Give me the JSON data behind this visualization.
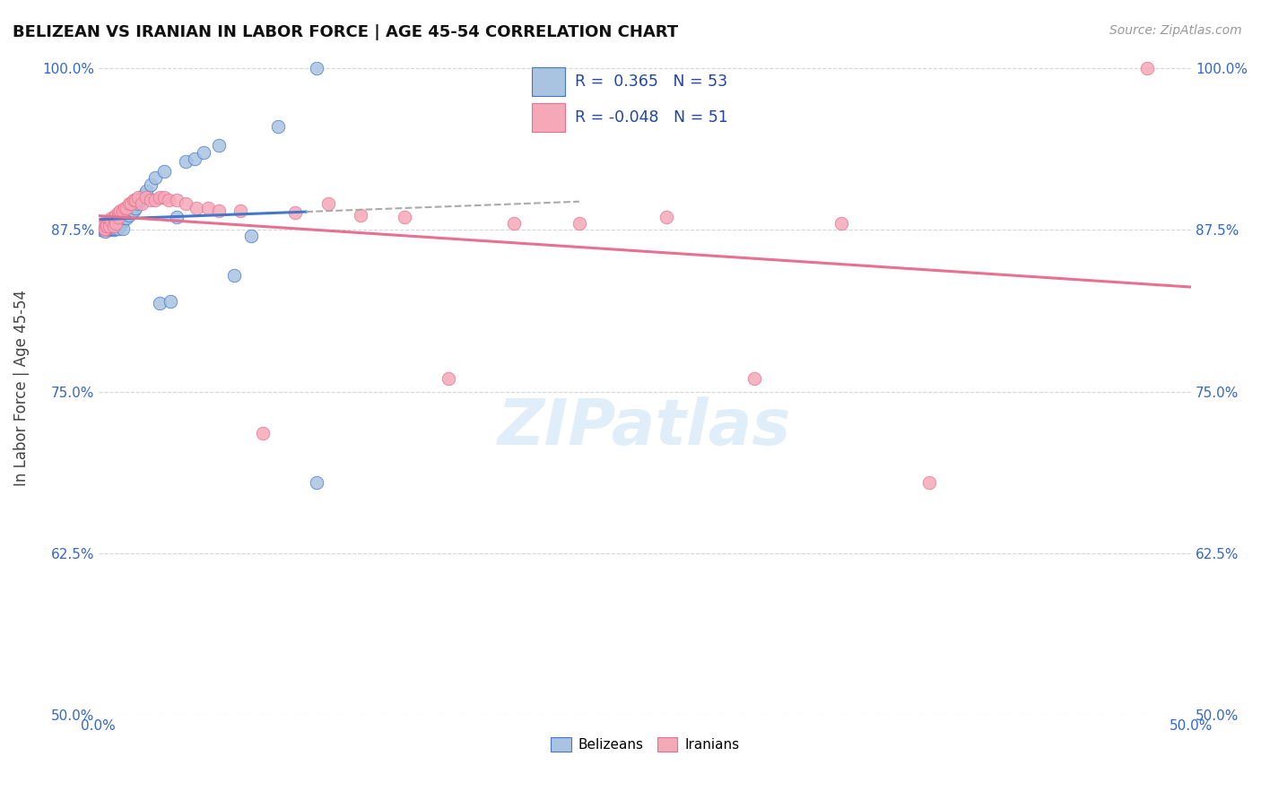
{
  "title": "BELIZEAN VS IRANIAN IN LABOR FORCE | AGE 45-54 CORRELATION CHART",
  "source": "Source: ZipAtlas.com",
  "ylabel": "In Labor Force | Age 45-54",
  "xmin": 0.0,
  "xmax": 0.5,
  "ymin": 0.5,
  "ymax": 1.005,
  "ytick_values": [
    0.5,
    0.625,
    0.75,
    0.875,
    1.0
  ],
  "ytick_labels": [
    "50.0%",
    "62.5%",
    "75.0%",
    "87.5%",
    "100.0%"
  ],
  "legend_r_blue": "0.365",
  "legend_n_blue": "53",
  "legend_r_pink": "-0.048",
  "legend_n_pink": "51",
  "blue_fill": "#a8c4e0",
  "blue_edge": "#4477cc",
  "pink_fill": "#f4a8b8",
  "pink_edge": "#e87090",
  "line_blue_color": "#4477cc",
  "line_pink_color": "#e87090",
  "dash_color": "#aaaaaa",
  "watermark_color": "#cce4f5",
  "belizean_x": [
    0.0015,
    0.0018,
    0.002,
    0.002,
    0.003,
    0.003,
    0.004,
    0.004,
    0.005,
    0.005,
    0.005,
    0.006,
    0.006,
    0.007,
    0.007,
    0.007,
    0.008,
    0.008,
    0.008,
    0.009,
    0.009,
    0.01,
    0.01,
    0.01,
    0.011,
    0.011,
    0.012,
    0.013,
    0.014,
    0.015,
    0.015,
    0.016,
    0.017,
    0.018,
    0.019,
    0.02,
    0.021,
    0.022,
    0.024,
    0.026,
    0.028,
    0.03,
    0.033,
    0.036,
    0.04,
    0.044,
    0.048,
    0.055,
    0.062,
    0.07,
    0.082,
    0.1,
    0.1
  ],
  "belizean_y": [
    0.875,
    0.875,
    0.878,
    0.876,
    0.878,
    0.874,
    0.876,
    0.878,
    0.875,
    0.878,
    0.88,
    0.876,
    0.878,
    0.875,
    0.876,
    0.878,
    0.878,
    0.876,
    0.878,
    0.878,
    0.876,
    0.88,
    0.878,
    0.88,
    0.882,
    0.876,
    0.884,
    0.884,
    0.886,
    0.888,
    0.888,
    0.89,
    0.892,
    0.895,
    0.898,
    0.9,
    0.902,
    0.905,
    0.91,
    0.915,
    0.818,
    0.92,
    0.82,
    0.885,
    0.928,
    0.93,
    0.935,
    0.94,
    0.84,
    0.87,
    0.955,
    0.68,
    1.0
  ],
  "iranian_x": [
    0.002,
    0.003,
    0.003,
    0.004,
    0.004,
    0.004,
    0.005,
    0.005,
    0.006,
    0.006,
    0.007,
    0.007,
    0.008,
    0.008,
    0.009,
    0.009,
    0.01,
    0.011,
    0.012,
    0.013,
    0.014,
    0.015,
    0.016,
    0.017,
    0.018,
    0.02,
    0.022,
    0.024,
    0.026,
    0.028,
    0.03,
    0.032,
    0.036,
    0.04,
    0.045,
    0.05,
    0.055,
    0.065,
    0.075,
    0.09,
    0.105,
    0.12,
    0.14,
    0.16,
    0.19,
    0.22,
    0.26,
    0.3,
    0.34,
    0.38,
    0.48
  ],
  "iranian_y": [
    0.88,
    0.875,
    0.876,
    0.878,
    0.88,
    0.878,
    0.882,
    0.878,
    0.884,
    0.882,
    0.884,
    0.878,
    0.886,
    0.88,
    0.888,
    0.885,
    0.89,
    0.89,
    0.892,
    0.892,
    0.895,
    0.895,
    0.898,
    0.898,
    0.9,
    0.895,
    0.9,
    0.898,
    0.898,
    0.9,
    0.9,
    0.898,
    0.898,
    0.895,
    0.892,
    0.892,
    0.89,
    0.89,
    0.718,
    0.888,
    0.895,
    0.886,
    0.885,
    0.76,
    0.88,
    0.88,
    0.885,
    0.76,
    0.88,
    0.68,
    1.0
  ]
}
